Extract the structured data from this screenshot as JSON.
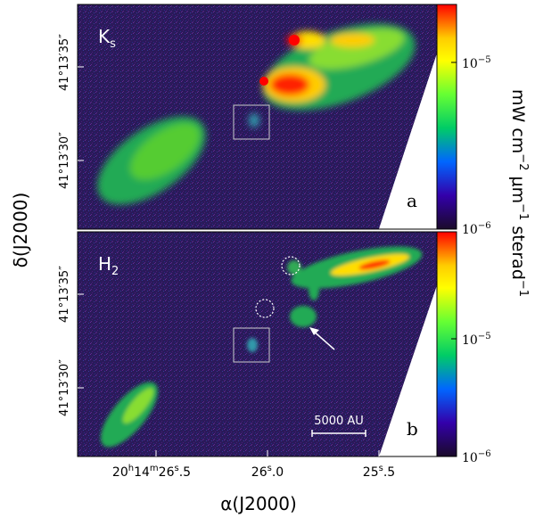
{
  "panels": {
    "top": {
      "band_label": "Ks",
      "panel_letter": "a"
    },
    "bottom": {
      "band_label": "H2",
      "panel_letter": "b",
      "scalebar_label": "5000 AU"
    }
  },
  "axes": {
    "x_label": "α(J2000)",
    "y_label": "δ(J2000)",
    "x_ticks": [
      "20h14m26.5s",
      "26s.0",
      "25s.5"
    ],
    "y_ticks_top": [
      "41°13′35″",
      "41°13′30″"
    ],
    "y_ticks_bottom": [
      "41°13′35″",
      "41°13′30″"
    ]
  },
  "colorbar": {
    "unit_label": "mW cm−2 μm−1 sterad−1",
    "top": {
      "high": "10−5",
      "low": "10−6"
    },
    "bottom": {
      "high": "10−5",
      "low": "10−6"
    },
    "colors": [
      "#ff0000",
      "#ffcc00",
      "#ffff00",
      "#66ff33",
      "#00cc66",
      "#0066ff",
      "#3300aa",
      "#2a0a3a"
    ]
  },
  "annotations": {
    "boxes": 2,
    "circles": 2,
    "arrow": true
  }
}
